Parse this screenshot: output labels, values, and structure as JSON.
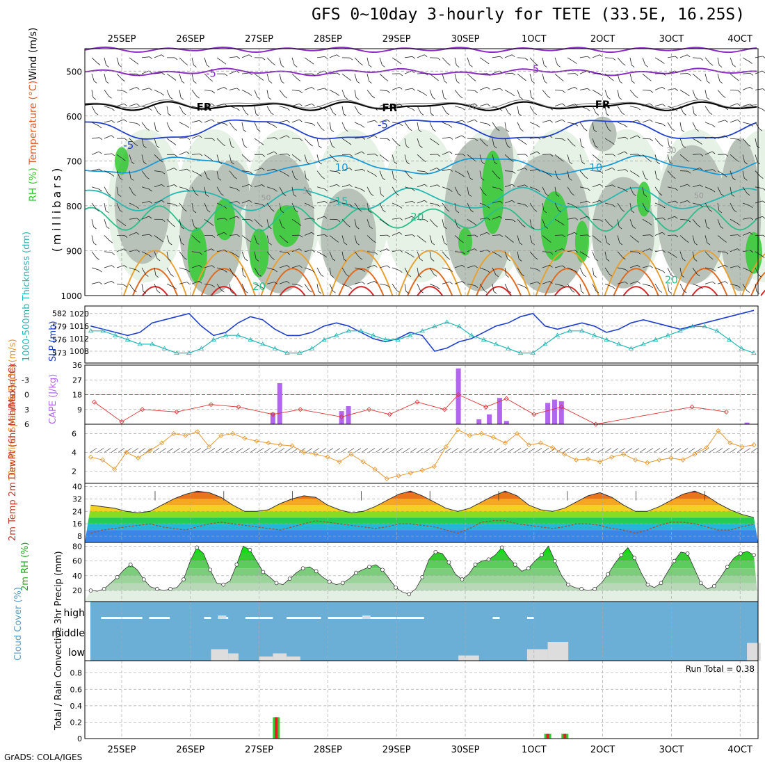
{
  "title": "GFS 0~10day 3-hourly for TETE (33.5E, 16.25S)",
  "credit": "GrADS: COLA/IGES",
  "colors": {
    "rh_green": "#33cc33",
    "rh_grey": "#b8c2b8",
    "rh_light": "#e6f2e6",
    "slp": "#1f3fcc",
    "thickness": "#2ab5b5",
    "cape": "#b266ee",
    "lifted": "#dd3333",
    "wind10": "#e8962c",
    "cloud": "#6baed6",
    "rain": "#dd2222",
    "precip_total": "#33cc33"
  },
  "chart_data": [
    {
      "type": "contour",
      "panel": "upper-air",
      "ylabels": [
        "RH (%)",
        "Temperature (°C)",
        "Wind (m/s)",
        "(millibars)"
      ],
      "x_tick_labels": [
        "25SEP",
        "26SEP",
        "27SEP",
        "28SEP",
        "29SEP",
        "30SEP",
        "1OCT",
        "2OCT",
        "3OCT",
        "4OCT"
      ],
      "y_ticks": [
        500,
        600,
        700,
        800,
        900,
        1000
      ],
      "ylim": [
        1000,
        450
      ],
      "contour_labels": [
        {
          "text": "-5",
          "day": 1.3,
          "p": 505
        },
        {
          "text": "-5",
          "day": 6.0,
          "p": 496
        },
        {
          "text": "FR",
          "day": 1.2,
          "p": 580
        },
        {
          "text": "FR",
          "day": 3.9,
          "p": 582
        },
        {
          "text": "FR",
          "day": 7.0,
          "p": 575
        },
        {
          "text": "-5",
          "day": 0.1,
          "p": 665
        },
        {
          "text": "-5",
          "day": 3.8,
          "p": 620
        },
        {
          "text": "10",
          "day": 3.2,
          "p": 715
        },
        {
          "text": "10",
          "day": 6.9,
          "p": 715
        },
        {
          "text": "15",
          "day": 3.2,
          "p": 790
        },
        {
          "text": "20",
          "day": 4.3,
          "p": 825
        },
        {
          "text": "20",
          "day": 2.0,
          "p": 980
        },
        {
          "text": "20",
          "day": 8.0,
          "p": 965
        },
        {
          "text": "10",
          "day": 5.1,
          "p": 578
        },
        {
          "text": "30",
          "day": 2.7,
          "p": 765
        },
        {
          "text": "50",
          "day": 2.1,
          "p": 780
        },
        {
          "text": "30",
          "day": 8.0,
          "p": 675
        },
        {
          "text": "50",
          "day": 8.4,
          "p": 775
        }
      ]
    },
    {
      "type": "line",
      "panel": "slp-thickness",
      "ylabel_left": "1000-500mb Thickness (dm)",
      "ylabel_right": "SLP (mb)",
      "yticks_left": [
        573,
        576,
        579,
        582
      ],
      "yticks_right": [
        1008,
        1012,
        1016,
        1020
      ],
      "slp": [
        1016,
        1015,
        1014,
        1013,
        1014,
        1017,
        1018,
        1019,
        1020,
        1016,
        1013,
        1014,
        1017,
        1019,
        1018,
        1015,
        1013,
        1013,
        1014,
        1016,
        1017,
        1016,
        1014,
        1012,
        1011,
        1012,
        1014,
        1013,
        1008,
        1009,
        1011,
        1012,
        1014,
        1016,
        1017,
        1019,
        1020,
        1016,
        1015,
        1016,
        1017,
        1016,
        1014,
        1015,
        1017,
        1018,
        1017,
        1016,
        1015,
        1016,
        1017,
        1018,
        1019,
        1020,
        1021
      ],
      "thickness": [
        578,
        578,
        577,
        576,
        575,
        575,
        574,
        573,
        573,
        574,
        576,
        577,
        577,
        576,
        575,
        574,
        573,
        573,
        574,
        576,
        577,
        578,
        578,
        577,
        576,
        576,
        577,
        578,
        579,
        580,
        579,
        577,
        576,
        575,
        574,
        573,
        573,
        575,
        577,
        578,
        578,
        577,
        576,
        575,
        574,
        575,
        576,
        577,
        578,
        579,
        579,
        578,
        576,
        574,
        573
      ]
    },
    {
      "type": "bar+line",
      "panel": "cape-lifted",
      "ylabel_left": "Lifted Index",
      "ylabel_right": "CAPE (J/kg)",
      "yticks_left": [
        -3,
        0,
        3,
        6
      ],
      "yticks_left_labels": [
        "-3",
        "0",
        "3",
        "6"
      ],
      "yticks_right": [
        9,
        18,
        27,
        36
      ],
      "cape": [
        {
          "x": 2.2,
          "v": 7
        },
        {
          "x": 2.3,
          "v": 25
        },
        {
          "x": 3.2,
          "v": 8
        },
        {
          "x": 3.3,
          "v": 11
        },
        {
          "x": 4.9,
          "v": 34
        },
        {
          "x": 5.2,
          "v": 3
        },
        {
          "x": 5.35,
          "v": 6
        },
        {
          "x": 5.5,
          "v": 16
        },
        {
          "x": 5.6,
          "v": 2
        },
        {
          "x": 6.2,
          "v": 13
        },
        {
          "x": 6.3,
          "v": 15
        },
        {
          "x": 6.4,
          "v": 14
        },
        {
          "x": 9.1,
          "v": 1
        }
      ],
      "lifted_index": [
        {
          "x": -0.4,
          "v": 1.5
        },
        {
          "x": 0.0,
          "v": 5.5
        },
        {
          "x": 0.3,
          "v": 3
        },
        {
          "x": 0.8,
          "v": 3.5
        },
        {
          "x": 1.3,
          "v": 2
        },
        {
          "x": 1.7,
          "v": 2.5
        },
        {
          "x": 2.2,
          "v": 4
        },
        {
          "x": 2.6,
          "v": 3
        },
        {
          "x": 3.2,
          "v": 4.5
        },
        {
          "x": 3.6,
          "v": 3
        },
        {
          "x": 3.9,
          "v": 4
        },
        {
          "x": 4.3,
          "v": 1.5
        },
        {
          "x": 4.7,
          "v": 3
        },
        {
          "x": 4.9,
          "v": 0
        },
        {
          "x": 5.3,
          "v": 2.5
        },
        {
          "x": 5.6,
          "v": 0.8
        },
        {
          "x": 6.0,
          "v": 4
        },
        {
          "x": 6.4,
          "v": 2.5
        },
        {
          "x": 6.9,
          "v": 6
        },
        {
          "x": 8.3,
          "v": 2.5
        },
        {
          "x": 8.8,
          "v": 3.5
        }
      ]
    },
    {
      "type": "line",
      "panel": "10m-wind",
      "ylabel": "10m Wind Speed & Barbs (m/s)",
      "yticks": [
        2,
        4,
        6
      ],
      "values": [
        3.5,
        3.2,
        2.2,
        4.0,
        3.4,
        4.2,
        5.0,
        6.0,
        5.8,
        6.2,
        4.6,
        5.8,
        6.0,
        5.5,
        5.2,
        5.0,
        4.8,
        4.7,
        4.0,
        3.8,
        3.5,
        3.0,
        3.8,
        3.0,
        2.2,
        1.2,
        1.5,
        1.8,
        2.1,
        2.5,
        4.6,
        6.4,
        5.8,
        6.0,
        5.6,
        5.0,
        6.0,
        4.8,
        5.0,
        4.5,
        3.8,
        3.2,
        3.3,
        3.0,
        3.5,
        3.8,
        3.2,
        2.9,
        3.2,
        3.4,
        3.2,
        3.8,
        4.5,
        6.3,
        5.0,
        4.6,
        4.8
      ]
    },
    {
      "type": "area+line",
      "panel": "2m-temp",
      "ylabel": "2m Temp 2m DewPt (6hr Min/Max) (°C)",
      "yticks": [
        8,
        16,
        24,
        32,
        40
      ],
      "temperature": [
        28,
        27,
        26,
        24,
        23,
        24,
        28,
        32,
        35,
        37,
        36,
        33,
        28,
        24,
        24,
        25,
        29,
        32,
        34,
        33,
        28,
        25,
        23,
        24,
        27,
        31,
        35,
        37,
        34,
        30,
        26,
        24,
        26,
        30,
        34,
        37,
        34,
        28,
        25,
        24,
        26,
        30,
        34,
        36,
        33,
        28,
        24,
        24,
        27,
        31,
        35,
        37,
        34,
        29,
        25,
        22,
        20
      ],
      "dewpoint": [
        10,
        12,
        13,
        14,
        15,
        16,
        14,
        13,
        12,
        14,
        16,
        17,
        16,
        15,
        14,
        13,
        12,
        14,
        16,
        18,
        17,
        16,
        15,
        14,
        13,
        14,
        16,
        16,
        15,
        14,
        12,
        10,
        13,
        17,
        18,
        18,
        16,
        15,
        14,
        13,
        14,
        16,
        16,
        15,
        13,
        12,
        10,
        12,
        15,
        17,
        17,
        16,
        14,
        12,
        12,
        14,
        16
      ]
    },
    {
      "type": "area",
      "panel": "2m-rh",
      "ylabel": "2m RH (%)",
      "yticks": [
        20,
        40,
        60,
        80
      ],
      "values": [
        20,
        19,
        22,
        30,
        38,
        48,
        55,
        48,
        35,
        25,
        22,
        20,
        22,
        24,
        35,
        60,
        78,
        70,
        48,
        30,
        28,
        33,
        55,
        80,
        75,
        60,
        45,
        38,
        30,
        28,
        36,
        44,
        50,
        52,
        46,
        38,
        32,
        28,
        30,
        36,
        44,
        48,
        52,
        55,
        48,
        36,
        24,
        18,
        15,
        22,
        38,
        62,
        72,
        70,
        58,
        42,
        35,
        42,
        55,
        60,
        62,
        68,
        78,
        65,
        55,
        46,
        50,
        60,
        68,
        80,
        60,
        40,
        28,
        24,
        22,
        20,
        22,
        30,
        42,
        56,
        68,
        78,
        64,
        44,
        28,
        24,
        30,
        45,
        60,
        72,
        70,
        50,
        30,
        22,
        26,
        38,
        52,
        64,
        70,
        73,
        68
      ]
    },
    {
      "type": "bar",
      "panel": "cloud-cover",
      "ylabel": "Cloud Cover (%)",
      "level_labels": [
        "high",
        "middle",
        "low"
      ],
      "low_cloud_gaps": [
        {
          "x0": 1.3,
          "x1": 1.55,
          "h": 0.55
        },
        {
          "x0": 1.55,
          "x1": 1.7,
          "h": 0.35
        },
        {
          "x0": 2.0,
          "x1": 2.2,
          "h": 0.2
        },
        {
          "x0": 2.2,
          "x1": 2.4,
          "h": 0.35
        },
        {
          "x0": 2.4,
          "x1": 2.6,
          "h": 0.2
        },
        {
          "x0": 4.9,
          "x1": 5.2,
          "h": 0.25
        },
        {
          "x0": 5.9,
          "x1": 6.2,
          "h": 0.55
        },
        {
          "x0": 6.2,
          "x1": 6.5,
          "h": 0.9
        },
        {
          "x0": 9.1,
          "x1": 9.3,
          "h": 0.85
        }
      ]
    },
    {
      "type": "bar",
      "panel": "precip",
      "ylabel": "Total / Rain Convective 3hr Precip (mm)",
      "yticks": [
        0,
        0.2,
        0.4,
        0.6,
        0.8
      ],
      "run_total": "Run Total = 0.38",
      "total": [
        {
          "x": 2.25,
          "v": 0.26
        },
        {
          "x": 6.2,
          "v": 0.06
        },
        {
          "x": 6.45,
          "v": 0.06
        }
      ],
      "convective": [
        {
          "x": 2.25,
          "v": 0.26
        },
        {
          "x": 6.2,
          "v": 0.06
        },
        {
          "x": 6.45,
          "v": 0.06
        }
      ]
    }
  ]
}
